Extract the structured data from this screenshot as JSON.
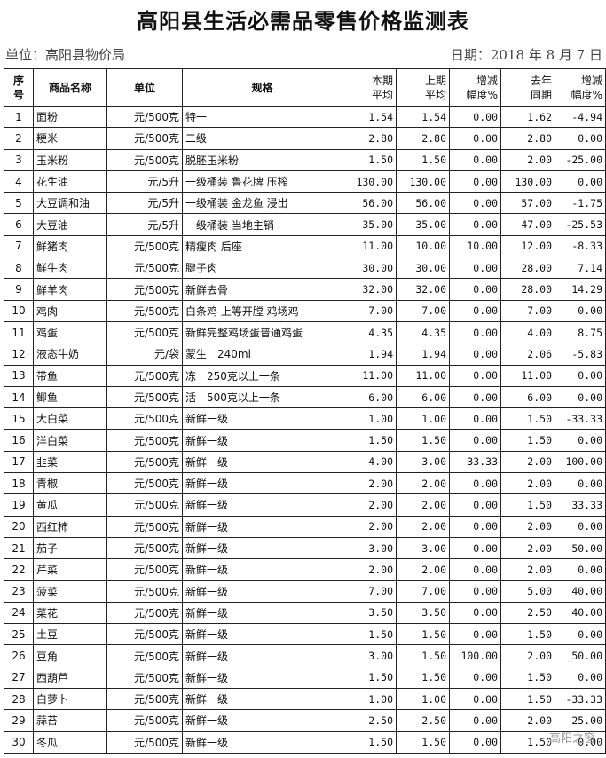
{
  "title": "高阳县生活必需品零售价格监测表",
  "unit": "单位：高阳县物价局",
  "date": "日期：2018 年 8 月 7 日",
  "watermark": "高阳之窗",
  "table": {
    "header": [
      [
        "序",
        "号"
      ],
      [
        "商品名称"
      ],
      [
        "单位"
      ],
      [
        "规格"
      ],
      [
        "本期",
        "平均"
      ],
      [
        "上期",
        "平均"
      ],
      [
        "增减",
        "幅度%"
      ],
      [
        "去年",
        "同期"
      ],
      [
        "增减",
        "幅度%"
      ]
    ],
    "rows": [
      [
        "1",
        "面粉",
        "元/500克",
        "特一",
        "1.54",
        "1.54",
        "0.00",
        "1.62",
        "-4.94"
      ],
      [
        "2",
        "粳米",
        "元/500克",
        "二级",
        "2.80",
        "2.80",
        "0.00",
        "2.80",
        "0.00"
      ],
      [
        "3",
        "玉米粉",
        "元/500克",
        "脱胚玉米粉",
        "1.50",
        "1.50",
        "0.00",
        "2.00",
        "-25.00"
      ],
      [
        "4",
        "花生油",
        "元/5升",
        "一级桶装 鲁花牌 压榨",
        "130.00",
        "130.00",
        "0.00",
        "130.00",
        "0.00"
      ],
      [
        "5",
        "大豆调和油",
        "元/5升",
        "一级桶装 金龙鱼 浸出",
        "56.00",
        "56.00",
        "0.00",
        "57.00",
        "-1.75"
      ],
      [
        "6",
        "大豆油",
        "元/5升",
        "一级桶装 当地主销",
        "35.00",
        "35.00",
        "0.00",
        "47.00",
        "-25.53"
      ],
      [
        "7",
        "鲜猪肉",
        "元/500克",
        "精瘦肉 后座",
        "11.00",
        "10.00",
        "10.00",
        "12.00",
        "-8.33"
      ],
      [
        "8",
        "鲜牛肉",
        "元/500克",
        "腱子肉",
        "30.00",
        "30.00",
        "0.00",
        "28.00",
        "7.14"
      ],
      [
        "9",
        "鲜羊肉",
        "元/500克",
        "新鲜去骨",
        "32.00",
        "32.00",
        "0.00",
        "28.00",
        "14.29"
      ],
      [
        "10",
        "鸡肉",
        "元/500克",
        "白条鸡 上等开膛 鸡场鸡",
        "7.00",
        "7.00",
        "0.00",
        "7.00",
        "0.00"
      ],
      [
        "11",
        "鸡蛋",
        "元/500克",
        "新鲜完整鸡场蛋普通鸡蛋",
        "4.35",
        "4.35",
        "0.00",
        "4.00",
        "8.75"
      ],
      [
        "12",
        "液态牛奶",
        "元/袋",
        "蒙生　240ml",
        "1.94",
        "1.94",
        "0.00",
        "2.06",
        "-5.83"
      ],
      [
        "13",
        "带鱼",
        "元/500克",
        "冻　250克以上一条",
        "11.00",
        "11.00",
        "0.00",
        "11.00",
        "0.00"
      ],
      [
        "14",
        "鲫鱼",
        "元/500克",
        "活　500克以上一条",
        "6.00",
        "6.00",
        "0.00",
        "6.00",
        "0.00"
      ],
      [
        "15",
        "大白菜",
        "元/500克",
        "新鲜一级",
        "1.00",
        "1.00",
        "0.00",
        "1.50",
        "-33.33"
      ],
      [
        "16",
        "洋白菜",
        "元/500克",
        "新鲜一级",
        "1.50",
        "1.50",
        "0.00",
        "1.50",
        "0.00"
      ],
      [
        "17",
        "韭菜",
        "元/500克",
        "新鲜一级",
        "4.00",
        "3.00",
        "33.33",
        "2.00",
        "100.00"
      ],
      [
        "18",
        "青椒",
        "元/500克",
        "新鲜一级",
        "2.00",
        "2.00",
        "0.00",
        "2.00",
        "0.00"
      ],
      [
        "19",
        "黄瓜",
        "元/500克",
        "新鲜一级",
        "2.00",
        "2.00",
        "0.00",
        "1.50",
        "33.33"
      ],
      [
        "20",
        "西红柿",
        "元/500克",
        "新鲜一级",
        "2.00",
        "2.00",
        "0.00",
        "2.00",
        "0.00"
      ],
      [
        "21",
        "茄子",
        "元/500克",
        "新鲜一级",
        "3.00",
        "3.00",
        "0.00",
        "2.00",
        "50.00"
      ],
      [
        "22",
        "芹菜",
        "元/500克",
        "新鲜一级",
        "2.00",
        "2.00",
        "0.00",
        "2.00",
        "0.00"
      ],
      [
        "23",
        "菠菜",
        "元/500克",
        "新鲜一级",
        "7.00",
        "7.00",
        "0.00",
        "5.00",
        "40.00"
      ],
      [
        "24",
        "菜花",
        "元/500克",
        "新鲜一级",
        "3.50",
        "3.50",
        "0.00",
        "2.50",
        "40.00"
      ],
      [
        "25",
        "土豆",
        "元/500克",
        "新鲜一级",
        "1.50",
        "1.50",
        "0.00",
        "1.50",
        "0.00"
      ],
      [
        "26",
        "豆角",
        "元/500克",
        "新鲜一级",
        "3.00",
        "1.50",
        "100.00",
        "2.00",
        "50.00"
      ],
      [
        "27",
        "西葫芦",
        "元/500克",
        "新鲜一级",
        "1.50",
        "1.50",
        "0.00",
        "1.50",
        "0.00"
      ],
      [
        "28",
        "白萝卜",
        "元/500克",
        "新鲜一级",
        "1.00",
        "1.00",
        "0.00",
        "1.50",
        "-33.33"
      ],
      [
        "29",
        "蒜苔",
        "元/500克",
        "新鲜一级",
        "2.50",
        "2.50",
        "0.00",
        "2.00",
        "25.00"
      ],
      [
        "30",
        "冬瓜",
        "元/500克",
        "新鲜一级",
        "1.50",
        "1.50",
        "0.00",
        "1.50",
        "0.00"
      ]
    ]
  }
}
